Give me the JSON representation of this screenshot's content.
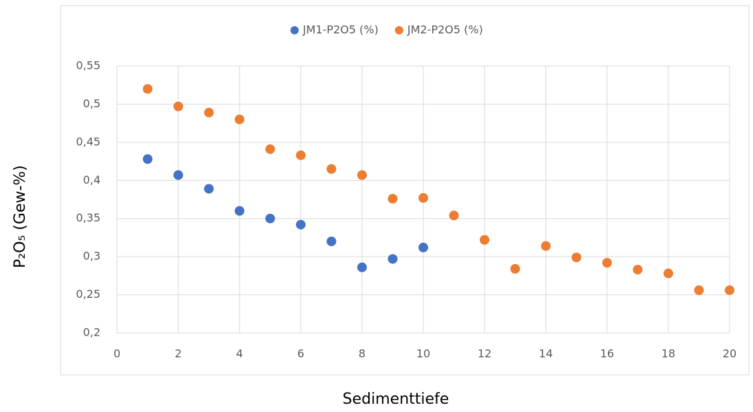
{
  "chart_data": {
    "type": "scatter",
    "x_label": "Sedimenttiefe",
    "y_label": "P₂O₅ (Gew-%)",
    "series": [
      {
        "name": "JM1-P2O5 (%)",
        "color": "#4472c4",
        "x": [
          1,
          2,
          3,
          4,
          5,
          6,
          7,
          8,
          9,
          10
        ],
        "values": [
          0.428,
          0.407,
          0.389,
          0.36,
          0.35,
          0.342,
          0.32,
          0.286,
          0.297,
          0.312
        ]
      },
      {
        "name": "JM2-P2O5 (%)",
        "color": "#ed7d31",
        "x": [
          1,
          2,
          3,
          4,
          5,
          6,
          7,
          8,
          9,
          10,
          11,
          12,
          13,
          14,
          15,
          16,
          17,
          18,
          19,
          20
        ],
        "values": [
          0.52,
          0.497,
          0.489,
          0.48,
          0.441,
          0.433,
          0.415,
          0.407,
          0.376,
          0.377,
          0.354,
          0.322,
          0.284,
          0.314,
          0.299,
          0.292,
          0.283,
          0.278,
          0.256,
          0.256
        ]
      }
    ],
    "xlim": [
      0,
      20
    ],
    "xticks": [
      0,
      2,
      4,
      6,
      8,
      10,
      12,
      14,
      16,
      18,
      20
    ],
    "ylim": [
      0.2,
      0.55
    ],
    "yticks": [
      {
        "value": 0.2,
        "label": "0,2"
      },
      {
        "value": 0.25,
        "label": "0,25"
      },
      {
        "value": 0.3,
        "label": "0,3"
      },
      {
        "value": 0.35,
        "label": "0,35"
      },
      {
        "value": 0.4,
        "label": "0,4"
      },
      {
        "value": 0.45,
        "label": "0,45"
      },
      {
        "value": 0.5,
        "label": "0,5"
      },
      {
        "value": 0.55,
        "label": "0,55"
      }
    ],
    "grid": true,
    "legend": "top"
  }
}
